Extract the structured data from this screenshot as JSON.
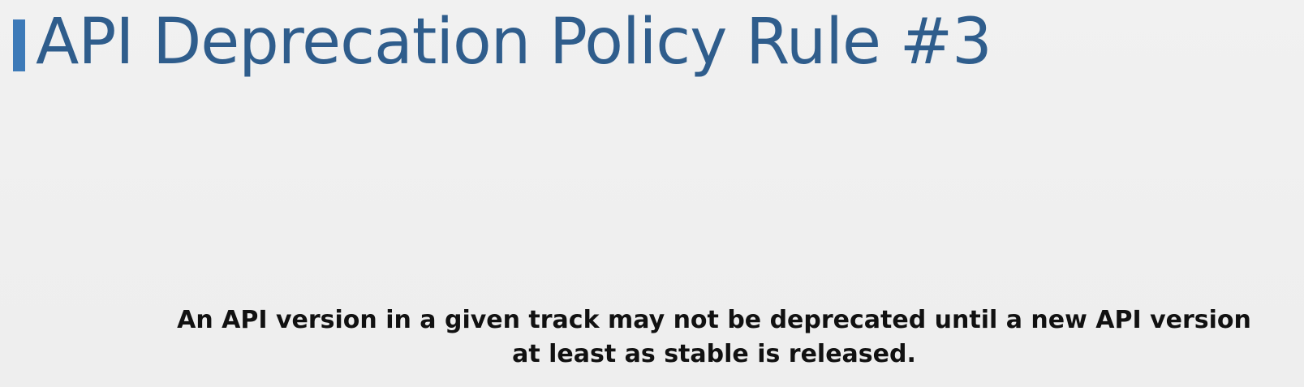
{
  "slide": {
    "title": "API Deprecation Policy Rule #3",
    "caption_line_1": "An API version in a given track may not be deprecated until a new API version",
    "caption_line_2": "at least as stable is released."
  },
  "colors": {
    "background": "#f0f0f0",
    "accent": "#3d7ab8",
    "title": "#2f5d8c",
    "caption": "#111111"
  }
}
